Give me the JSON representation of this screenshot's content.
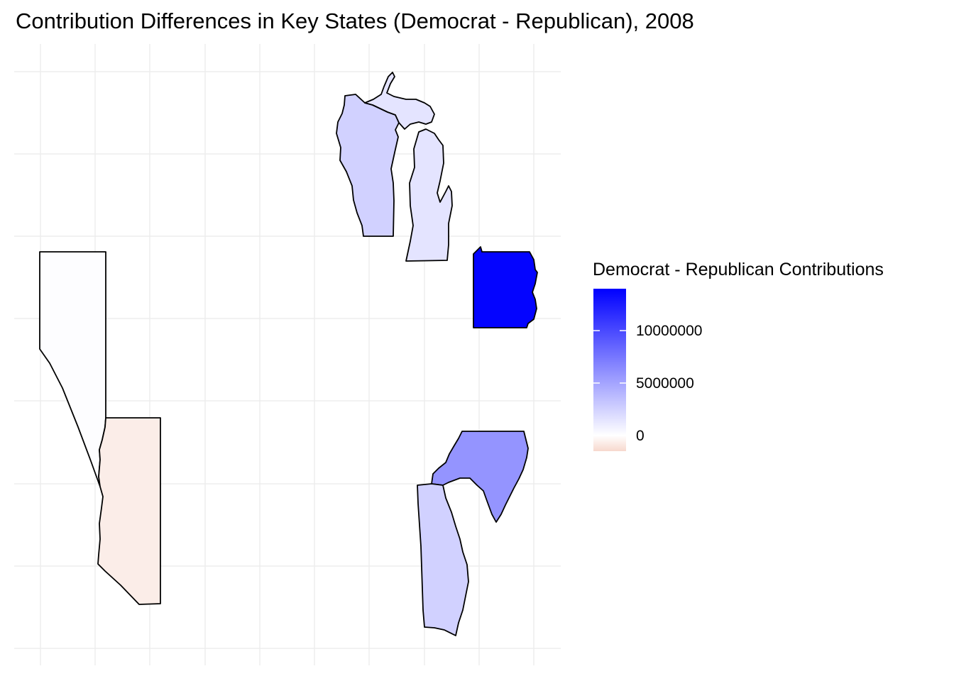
{
  "chart_data": {
    "type": "choropleth",
    "title": "Contribution Differences in Key States (Democrat - Republican), 2008",
    "legend": {
      "title": "Democrat - Republican Contributions",
      "placement": "right",
      "breaks": [
        {
          "label": "10000000",
          "value": 10000000
        },
        {
          "label": "5000000",
          "value": 5000000
        },
        {
          "label": "0",
          "value": 0
        }
      ],
      "range": [
        -1500000,
        14000000
      ],
      "low_color": "#f7d8cd",
      "mid_color": "#ffffff",
      "high_color": "#0000ff"
    },
    "grid": true,
    "regions": [
      {
        "id": "michigan",
        "value": 1500000
      },
      {
        "id": "wisconsin",
        "value": 2500000
      },
      {
        "id": "pennsylvania",
        "value": 13800000
      },
      {
        "id": "north-carolina",
        "value": 5900000
      },
      {
        "id": "south-carolina",
        "value": 2500000
      },
      {
        "id": "nevada",
        "value": 100000
      },
      {
        "id": "arizona",
        "value": -700000
      }
    ]
  }
}
